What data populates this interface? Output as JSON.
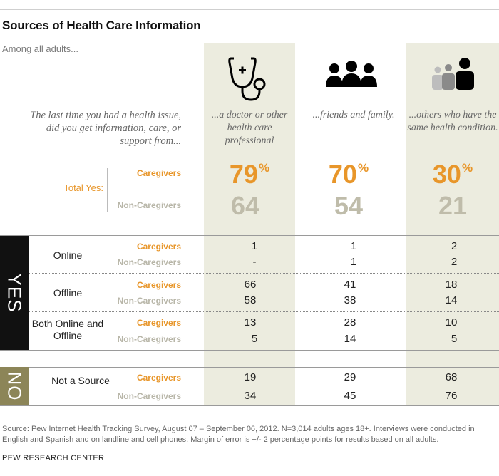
{
  "header": {
    "title": "Sources of Health Care Information",
    "subtitle": "Among all adults..."
  },
  "question": "The last time you had a health issue, did you get information, care, or support from...",
  "labels": {
    "caregivers": "Caregivers",
    "non_caregivers": "Non-Caregivers",
    "total_yes": "Total Yes:",
    "yes": "YES",
    "no": "NO",
    "percent": "%"
  },
  "columns": [
    {
      "label": "...a doctor or other health care professional",
      "icon": "stethoscope-icon"
    },
    {
      "label": "...friends and family.",
      "icon": "people-group-icon"
    },
    {
      "label": "...others who have the same health condition.",
      "icon": "peers-icon"
    }
  ],
  "colors": {
    "caregivers": "#e8962a",
    "non_caregivers": "#bfbcaa",
    "yes_block": "#111111",
    "no_block": "#8c8558",
    "column_shade": "#ececdf"
  },
  "chart_data": {
    "type": "table",
    "title": "Sources of Health Care Information",
    "columns": [
      "...a doctor or other health care professional",
      "...friends and family.",
      "...others who have the same health condition."
    ],
    "total_yes": {
      "caregivers": [
        "79",
        "70",
        "30"
      ],
      "non_caregivers": [
        "64",
        "54",
        "21"
      ]
    },
    "rows": [
      {
        "group": "YES",
        "label": "Online",
        "caregivers": [
          "1",
          "1",
          "2"
        ],
        "non_caregivers": [
          "-",
          "1",
          "2"
        ]
      },
      {
        "group": "YES",
        "label": "Offline",
        "caregivers": [
          "66",
          "41",
          "18"
        ],
        "non_caregivers": [
          "58",
          "38",
          "14"
        ]
      },
      {
        "group": "YES",
        "label": "Both Online and Offline",
        "caregivers": [
          "13",
          "28",
          "10"
        ],
        "non_caregivers": [
          "5",
          "14",
          "5"
        ]
      },
      {
        "group": "NO",
        "label": "Not a Source",
        "caregivers": [
          "19",
          "29",
          "68"
        ],
        "non_caregivers": [
          "34",
          "45",
          "76"
        ]
      }
    ]
  },
  "footer": {
    "source": "Source: Pew Internet Health Tracking Survey, August 07 – September 06, 2012. N=3,014 adults ages 18+. Interviews were conducted in English and Spanish and on landline and cell phones. Margin of error is +/- 2 percentage points for results based on all adults.",
    "org": "PEW RESEARCH CENTER"
  }
}
